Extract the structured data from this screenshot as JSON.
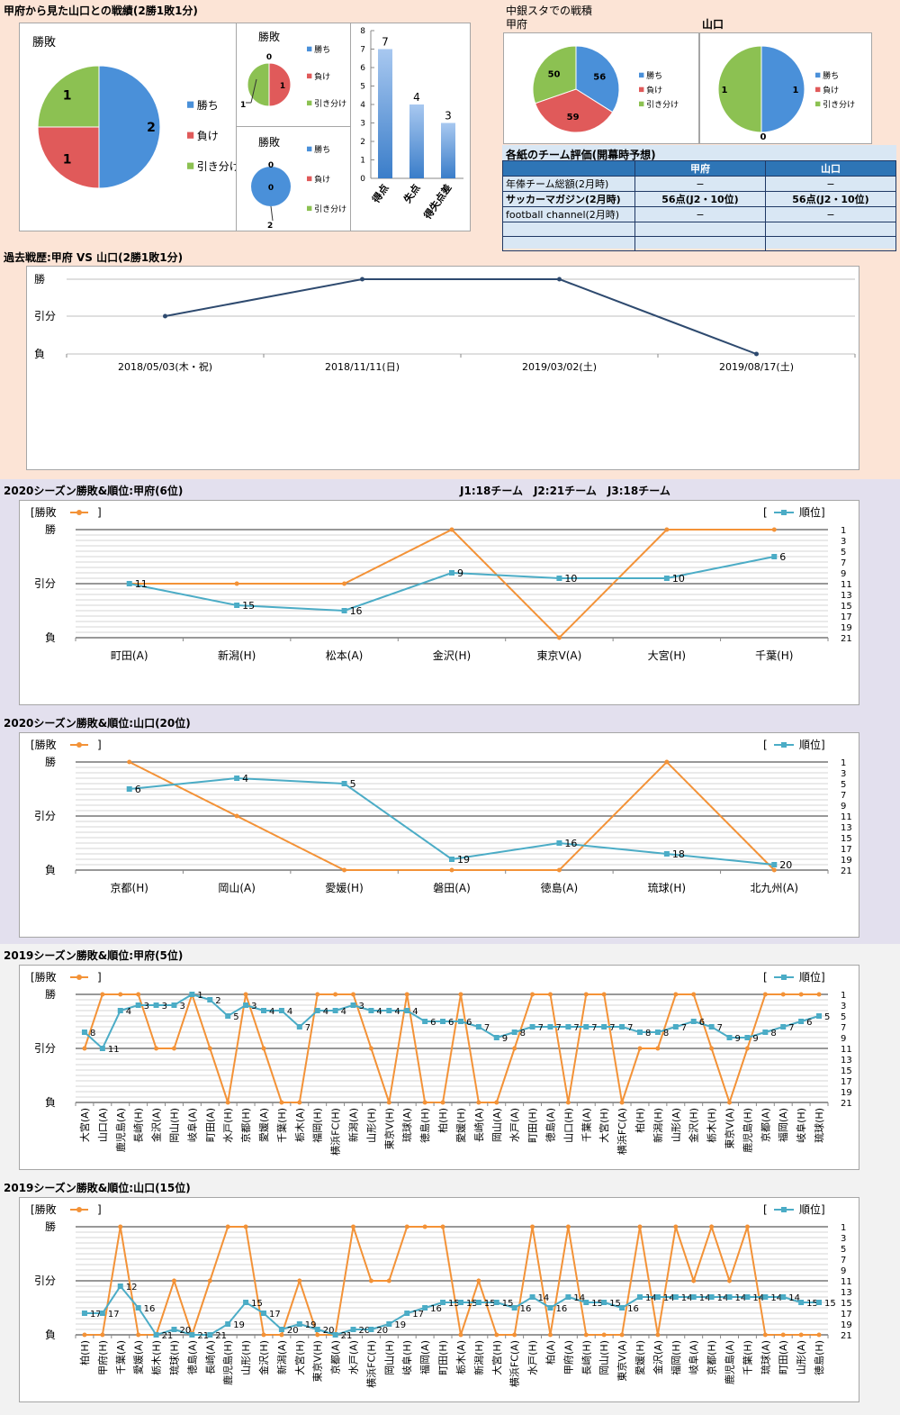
{
  "colors": {
    "top_bg": "#fce4d6",
    "mid_bg": "#e3e0ee",
    "bot_bg": "#f2f2f2",
    "win": "#4a90d9",
    "loss": "#e05a5a",
    "draw": "#8cc152",
    "result_line": "#f39237",
    "rank_line": "#4bacc6",
    "history_line": "#2e4a6f"
  },
  "top": {
    "title": "甲府から見た山口との戦績(2勝1敗1分)",
    "main_pie": {
      "title": "勝敗",
      "values": {
        "win": 2,
        "loss": 1,
        "draw": 1
      },
      "legend": [
        "勝ち",
        "負け",
        "引き分け"
      ]
    },
    "small_pie1": {
      "title": "勝敗",
      "values": {
        "win": 0,
        "loss": 1,
        "draw": 1
      },
      "labels": [
        "0",
        "1",
        "1"
      ],
      "legend": [
        "勝ち",
        "負け",
        "引き分け"
      ]
    },
    "small_pie2": {
      "title": "勝敗",
      "labels": [
        "0",
        "0",
        "2"
      ],
      "legend": [
        "勝ち",
        "負け",
        "引き分け"
      ]
    },
    "bar": {
      "categories": [
        "得点",
        "失点",
        "得失点差"
      ],
      "values": [
        7,
        4,
        3
      ],
      "ylim": [
        0,
        8
      ],
      "ticks": [
        "0",
        "1",
        "2",
        "3",
        "4",
        "5",
        "6",
        "7",
        "8"
      ]
    }
  },
  "stadium": {
    "title": "中銀スタでの戦積",
    "kofu_label": "甲府",
    "yamaguchi_label": "山口",
    "kofu_pie": {
      "values": {
        "win": 56,
        "loss": 59,
        "draw": 50
      },
      "legend": [
        "勝ち",
        "負け",
        "引き分け"
      ]
    },
    "yama_pie": {
      "values": {
        "win": 1,
        "loss": 0,
        "draw": 1
      },
      "labels": [
        "1",
        "0",
        "1"
      ],
      "legend": [
        "勝ち",
        "負け",
        "引き分け"
      ]
    }
  },
  "ratings": {
    "title": "各紙のチーム評価(開幕時予想)",
    "headers": [
      "",
      "甲府",
      "山口"
    ],
    "rows": [
      [
        "年俸チーム総額(2月時)",
        "−",
        "−"
      ],
      [
        "サッカーマガジン(2月時)",
        "56点(J2・10位)",
        "56点(J2・10位)"
      ],
      [
        "football channel(2月時)",
        "−",
        "−"
      ],
      [
        "",
        "",
        ""
      ],
      [
        "",
        "",
        ""
      ]
    ]
  },
  "history": {
    "title": "過去戦歴:甲府 VS 山口(2勝1敗1分)",
    "ylabels": [
      "勝",
      "引分",
      "負"
    ],
    "x": [
      "2018/05/03(木・祝)",
      "2018/11/11(日)",
      "2019/03/02(土)",
      "2019/08/17(土)"
    ],
    "values": [
      0,
      1,
      1,
      -1
    ]
  },
  "legend": {
    "result": "[勝敗",
    "result_close": "]",
    "rank": "[",
    "rank_label": "順位]"
  },
  "rank_ticks": [
    "1",
    "3",
    "5",
    "7",
    "9",
    "11",
    "13",
    "15",
    "17",
    "19",
    "21"
  ],
  "result_ticks": [
    "勝",
    "引分",
    "負"
  ],
  "league_note": "J1:18チーム　J2:21チーム　J3:18チーム",
  "chart_data": [
    {
      "type": "line",
      "title": "2020シーズン勝敗&順位:甲府(6位)",
      "categories": [
        "町田(A)",
        "新潟(H)",
        "松本(A)",
        "金沢(H)",
        "東京V(A)",
        "大宮(H)",
        "千葉(H)"
      ],
      "series": [
        {
          "name": "勝敗",
          "values": [
            0,
            0,
            0,
            1,
            -1,
            1,
            1
          ]
        },
        {
          "name": "順位",
          "values": [
            11,
            15,
            16,
            9,
            10,
            10,
            6
          ]
        }
      ]
    },
    {
      "type": "line",
      "title": "2020シーズン勝敗&順位:山口(20位)",
      "categories": [
        "京都(H)",
        "岡山(A)",
        "愛媛(H)",
        "磐田(A)",
        "徳島(A)",
        "琉球(H)",
        "北九州(A)"
      ],
      "series": [
        {
          "name": "勝敗",
          "values": [
            1,
            0,
            -1,
            -1,
            -1,
            1,
            -1
          ]
        },
        {
          "name": "順位",
          "values": [
            6,
            4,
            5,
            19,
            16,
            18,
            20
          ]
        }
      ]
    },
    {
      "type": "line",
      "title": "2019シーズン勝敗&順位:甲府(5位)",
      "categories": [
        "大宮(A)",
        "山口(A)",
        "鹿児島(A)",
        "長崎(H)",
        "金沢(A)",
        "岡山(H)",
        "岐阜(A)",
        "町田(A)",
        "水戸(H)",
        "京都(H)",
        "愛媛(A)",
        "千葉(H)",
        "栃木(A)",
        "福岡(H)",
        "横浜FC(H)",
        "新潟(A)",
        "山形(H)",
        "東京V(H)",
        "琉球(A)",
        "徳島(H)",
        "柏(H)",
        "愛媛(H)",
        "長崎(A)",
        "岡山(A)",
        "水戸(A)",
        "町田(H)",
        "徳島(A)",
        "山口(H)",
        "千葉(A)",
        "大宮(H)",
        "横浜FC(A)",
        "柏(H)",
        "新潟(H)",
        "山形(A)",
        "金沢(H)",
        "栃木(H)",
        "東京V(A)",
        "鹿児島(H)",
        "京都(A)",
        "福岡(A)",
        "岐阜(H)",
        "琉球(H)"
      ],
      "series": [
        {
          "name": "勝敗",
          "values": [
            0,
            1,
            1,
            1,
            0,
            0,
            1,
            0,
            -1,
            1,
            0,
            -1,
            -1,
            1,
            1,
            1,
            0,
            -1,
            1,
            -1,
            -1,
            1,
            -1,
            -1,
            0,
            1,
            1,
            -1,
            1,
            1,
            -1,
            0,
            0,
            1,
            1,
            0,
            -1,
            0,
            1,
            1,
            1,
            1
          ]
        },
        {
          "name": "順位",
          "values": [
            8,
            11,
            4,
            3,
            3,
            3,
            1,
            2,
            5,
            3,
            4,
            4,
            7,
            4,
            4,
            3,
            4,
            4,
            4,
            6,
            6,
            6,
            7,
            9,
            8,
            7,
            7,
            7,
            7,
            7,
            7,
            8,
            8,
            7,
            6,
            7,
            9,
            9,
            8,
            7,
            6,
            5
          ]
        }
      ]
    },
    {
      "type": "line",
      "title": "2019シーズン勝敗&順位:山口(15位)",
      "categories": [
        "柏(H)",
        "甲府(H)",
        "千葉(A)",
        "愛媛(A)",
        "栃木(H)",
        "琉球(H)",
        "徳島(A)",
        "長崎(A)",
        "鹿児島(H)",
        "山形(H)",
        "金沢(H)",
        "新潟(A)",
        "大宮(H)",
        "東京V(H)",
        "京都(A)",
        "水戸(A)",
        "横浜FC(H)",
        "岡山(H)",
        "岐阜(H)",
        "福岡(A)",
        "町田(H)",
        "栃木(A)",
        "新潟(H)",
        "大宮(H)",
        "横浜FC(A)",
        "水戸(H)",
        "柏(A)",
        "甲府(A)",
        "長崎(H)",
        "岡山(H)",
        "東京V(A)",
        "愛媛(H)",
        "金沢(A)",
        "福岡(H)",
        "岐阜(A)",
        "京都(H)",
        "鹿児島(A)",
        "千葉(H)",
        "琉球(A)",
        "町田(A)",
        "山形(A)",
        "徳島(H)"
      ],
      "series": [
        {
          "name": "勝敗",
          "values": [
            -1,
            -1,
            1,
            -1,
            -1,
            0,
            -1,
            0,
            1,
            1,
            -1,
            -1,
            0,
            -1,
            -1,
            1,
            0,
            0,
            1,
            1,
            1,
            -1,
            0,
            -1,
            -1,
            1,
            -1,
            1,
            -1,
            -1,
            -1,
            1,
            -1,
            1,
            0,
            1,
            0,
            1,
            -1,
            -1,
            -1,
            -1
          ]
        },
        {
          "name": "順位",
          "values": [
            17,
            17,
            12,
            16,
            21,
            20,
            21,
            21,
            19,
            15,
            17,
            20,
            19,
            20,
            21,
            20,
            20,
            19,
            17,
            16,
            15,
            15,
            15,
            15,
            16,
            14,
            16,
            14,
            15,
            15,
            16,
            14,
            14,
            14,
            14,
            14,
            14,
            14,
            14,
            14,
            15,
            15
          ]
        }
      ]
    }
  ]
}
